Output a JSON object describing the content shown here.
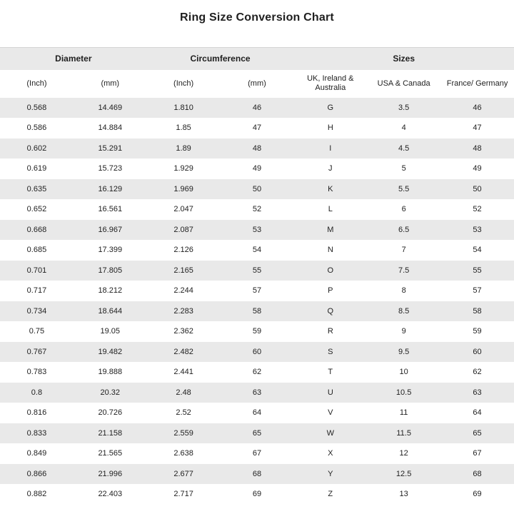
{
  "chart_data": {
    "type": "table",
    "title": "Ring Size Conversion Chart",
    "column_groups": [
      {
        "label": "Diameter",
        "span": 2
      },
      {
        "label": "Circumference",
        "span": 2
      },
      {
        "label": "Sizes",
        "span": 3
      }
    ],
    "columns": [
      "(Inch)",
      "(mm)",
      "(Inch)",
      "(mm)",
      "UK, Ireland & Australia",
      "USA & Canada",
      "France/ Germany"
    ],
    "rows": [
      [
        "0.568",
        "14.469",
        "1.810",
        "46",
        "G",
        "3.5",
        "46"
      ],
      [
        "0.586",
        "14.884",
        "1.85",
        "47",
        "H",
        "4",
        "47"
      ],
      [
        "0.602",
        "15.291",
        "1.89",
        "48",
        "I",
        "4.5",
        "48"
      ],
      [
        "0.619",
        "15.723",
        "1.929",
        "49",
        "J",
        "5",
        "49"
      ],
      [
        "0.635",
        "16.129",
        "1.969",
        "50",
        "K",
        "5.5",
        "50"
      ],
      [
        "0.652",
        "16.561",
        "2.047",
        "52",
        "L",
        "6",
        "52"
      ],
      [
        "0.668",
        "16.967",
        "2.087",
        "53",
        "M",
        "6.5",
        "53"
      ],
      [
        "0.685",
        "17.399",
        "2.126",
        "54",
        "N",
        "7",
        "54"
      ],
      [
        "0.701",
        "17.805",
        "2.165",
        "55",
        "O",
        "7.5",
        "55"
      ],
      [
        "0.717",
        "18.212",
        "2.244",
        "57",
        "P",
        "8",
        "57"
      ],
      [
        "0.734",
        "18.644",
        "2.283",
        "58",
        "Q",
        "8.5",
        "58"
      ],
      [
        "0.75",
        "19.05",
        "2.362",
        "59",
        "R",
        "9",
        "59"
      ],
      [
        "0.767",
        "19.482",
        "2.482",
        "60",
        "S",
        "9.5",
        "60"
      ],
      [
        "0.783",
        "19.888",
        "2.441",
        "62",
        "T",
        "10",
        "62"
      ],
      [
        "0.8",
        "20.32",
        "2.48",
        "63",
        "U",
        "10.5",
        "63"
      ],
      [
        "0.816",
        "20.726",
        "2.52",
        "64",
        "V",
        "11",
        "64"
      ],
      [
        "0.833",
        "21.158",
        "2.559",
        "65",
        "W",
        "11.5",
        "65"
      ],
      [
        "0.849",
        "21.565",
        "2.638",
        "67",
        "X",
        "12",
        "67"
      ],
      [
        "0.866",
        "21.996",
        "2.677",
        "68",
        "Y",
        "12.5",
        "68"
      ],
      [
        "0.882",
        "22.403",
        "2.717",
        "69",
        "Z",
        "13",
        "69"
      ]
    ],
    "layout": {
      "grid": "off",
      "striping": "alternating rows, first data row shaded"
    }
  },
  "colors": {
    "header_band": "#e9e9e9",
    "row_stripe": "#e9e9e9",
    "background": "#ffffff",
    "text": "#1f1f1f",
    "table_top_border": "#d4d4d4"
  }
}
